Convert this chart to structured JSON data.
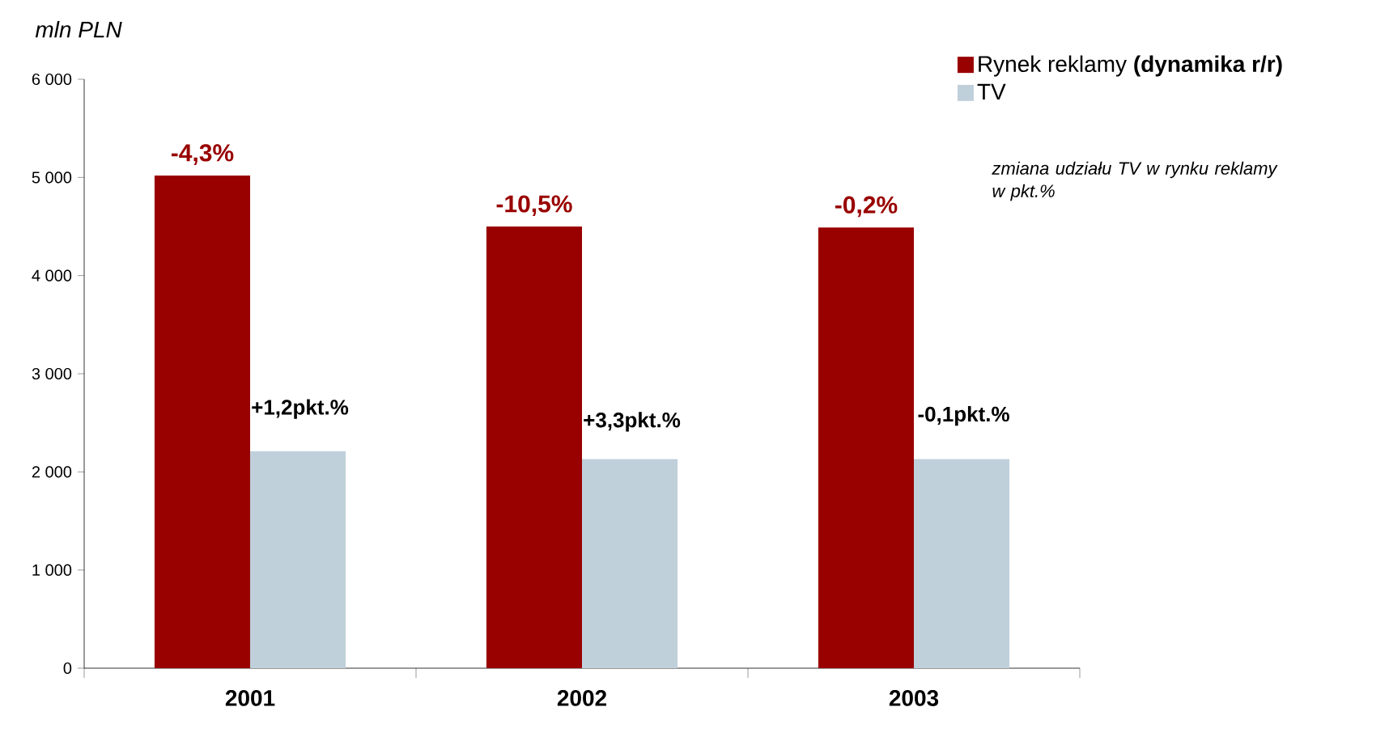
{
  "chart_data": {
    "type": "bar",
    "ylabel": "mln PLN",
    "categories": [
      "2001",
      "2002",
      "2003"
    ],
    "series": [
      {
        "name": "Rynek reklamy **(dynamika r/r)**",
        "color": "#990000",
        "values": [
          5020,
          4500,
          4490
        ]
      },
      {
        "name": "TV",
        "color": "#c0d0db",
        "values": [
          2210,
          2130,
          2130
        ]
      }
    ],
    "ylim": [
      0,
      6000
    ],
    "yticks": [
      0,
      {
        "value": 1000,
        "label": "1 000"
      },
      {
        "value": 2000,
        "label": "2 000"
      },
      {
        "value": 3000,
        "label": "3 000"
      },
      {
        "value": 4000,
        "label": "4 000"
      },
      {
        "value": 5000,
        "label": "5 000"
      },
      {
        "value": 6000,
        "label": "6 000"
      }
    ],
    "legend": "top right",
    "annotations": [
      {
        "text": "-4,3%",
        "x": "2001",
        "y": 5020
      },
      {
        "text": "-10,5%",
        "x": "2002",
        "y": 4500
      },
      {
        "text": "-0,2%",
        "x": "2003",
        "y": 4490
      },
      {
        "text": "+1,2pkt.%",
        "x": "2001",
        "y": 2640
      },
      {
        "text": "+3,3pkt.%",
        "x": "2002",
        "y": 2510
      },
      {
        "text": "-0,1pkt.%",
        "x": "2003",
        "y": 2570
      },
      "zmiana udziału TV w rynku reklamy w pkt.%"
    ]
  }
}
